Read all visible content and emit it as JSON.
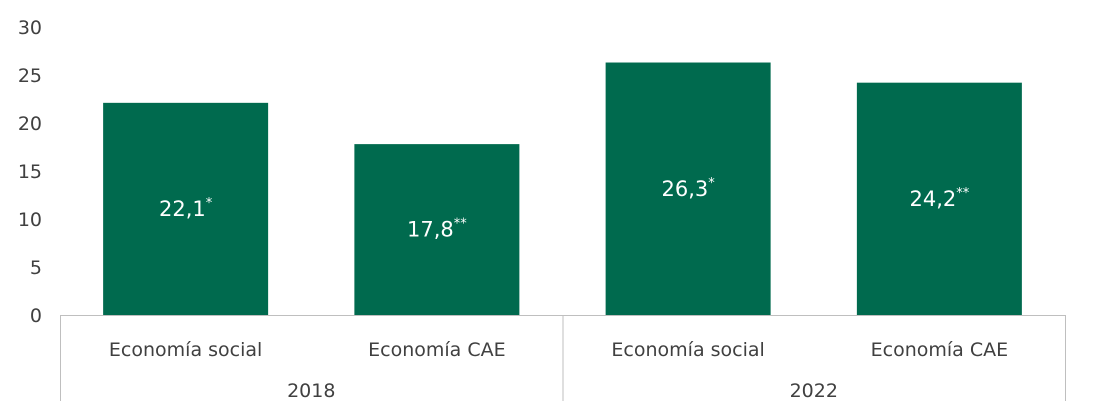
{
  "chart_data": {
    "type": "bar",
    "y_ticks": [
      "30",
      "25",
      "20",
      "15",
      "10",
      "5",
      "0"
    ],
    "ylim": [
      0,
      30
    ],
    "bar_color": "#006a4e",
    "groups": [
      {
        "label": "2018",
        "categories": [
          "Economía social",
          "Economía CAE"
        ]
      },
      {
        "label": "2022",
        "categories": [
          "Economía social",
          "Economía CAE"
        ]
      }
    ],
    "values": [
      22.1,
      17.8,
      26.3,
      24.2
    ],
    "data_labels": [
      {
        "value": "22,1",
        "mark": "*"
      },
      {
        "value": "17,8",
        "mark": "**"
      },
      {
        "value": "26,3",
        "mark": "*"
      },
      {
        "value": "24,2",
        "mark": "**"
      }
    ],
    "grid": false,
    "legend": "none"
  }
}
